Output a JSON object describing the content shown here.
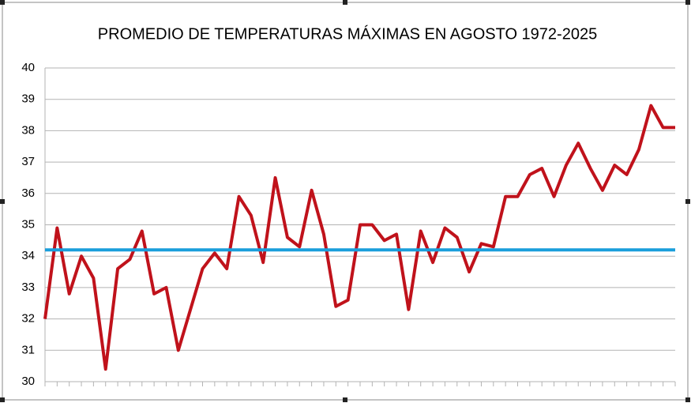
{
  "chart_data": {
    "type": "line",
    "title": "PROMEDIO DE TEMPERATURAS MÁXIMAS EN AGOSTO 1972-2025",
    "ylim": [
      30,
      40
    ],
    "yticks": [
      30,
      31,
      32,
      33,
      34,
      35,
      36,
      37,
      38,
      39,
      40
    ],
    "grid": true,
    "series": [
      {
        "color": "#c0121b",
        "values": [
          32.0,
          34.9,
          32.8,
          34.0,
          33.3,
          30.4,
          33.6,
          33.9,
          34.8,
          32.8,
          33.0,
          31.0,
          32.3,
          33.6,
          34.1,
          33.6,
          35.9,
          35.3,
          33.8,
          36.5,
          34.6,
          34.3,
          36.1,
          34.7,
          32.4,
          32.6,
          35.0,
          35.0,
          34.5,
          34.7,
          32.3,
          34.8,
          33.8,
          34.9,
          34.6,
          33.5,
          34.4,
          34.3,
          35.9,
          35.9,
          36.6,
          36.8,
          35.9,
          36.9,
          37.6,
          36.8,
          36.1,
          36.9,
          36.6,
          37.4,
          38.8,
          38.1,
          38.1
        ]
      },
      {
        "color": "#1a9edb",
        "values": [
          34.2,
          34.2,
          34.2,
          34.2,
          34.2,
          34.2,
          34.2,
          34.2,
          34.2,
          34.2,
          34.2,
          34.2,
          34.2,
          34.2,
          34.2,
          34.2,
          34.2,
          34.2,
          34.2,
          34.2,
          34.2,
          34.2,
          34.2,
          34.2,
          34.2,
          34.2,
          34.2,
          34.2,
          34.2,
          34.2,
          34.2,
          34.2,
          34.2,
          34.2,
          34.2,
          34.2,
          34.2,
          34.2,
          34.2,
          34.2,
          34.2,
          34.2,
          34.2,
          34.2,
          34.2,
          34.2,
          34.2,
          34.2,
          34.2,
          34.2,
          34.2,
          34.2,
          34.2
        ]
      }
    ]
  }
}
